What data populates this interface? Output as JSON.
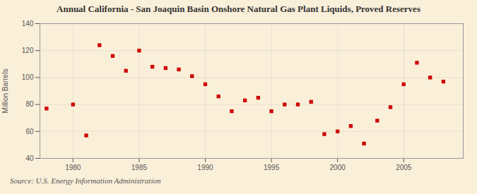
{
  "chart_data": {
    "type": "scatter",
    "title": "Annual California - San Joaquin Basin Onshore Natural Gas Plant Liquids,  Proved Reserves",
    "ylabel": "Million Barrels",
    "source": "Source: U.S. Energy Information Administration",
    "x": [
      1978,
      1980,
      1981,
      1982,
      1983,
      1984,
      1985,
      1986,
      1987,
      1988,
      1989,
      1990,
      1991,
      1992,
      1993,
      1994,
      1995,
      1996,
      1997,
      1998,
      1999,
      2000,
      2001,
      2002,
      2003,
      2004,
      2005,
      2006,
      2007,
      2008
    ],
    "values": [
      77,
      80,
      57,
      124,
      116,
      105,
      120,
      108,
      107,
      106,
      101,
      95,
      86,
      75,
      83,
      85,
      75,
      80,
      80,
      82,
      58,
      60,
      64,
      51,
      68,
      78,
      95,
      111,
      100,
      97
    ],
    "color": "#cc0000",
    "marker": "square",
    "xlim": [
      1977.5,
      2009.5
    ],
    "ylim": [
      40,
      140
    ],
    "xticks": [
      1980,
      1985,
      1990,
      1995,
      2000,
      2005
    ],
    "yticks": [
      40,
      60,
      80,
      100,
      120,
      140
    ],
    "grid": true
  }
}
